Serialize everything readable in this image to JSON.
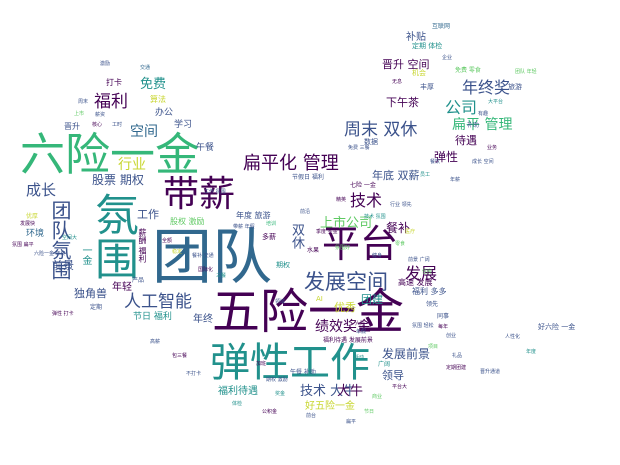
{
  "palette": {
    "dark_purple": "#440154",
    "indigo": "#3b528b",
    "teal": "#21918c",
    "green": "#5ec962",
    "yellow": "#c8d630",
    "navy": "#31688e",
    "sea": "#35b779"
  },
  "words": [
    {
      "t": "团队"
    },
    {
      "t": "五险一金"
    },
    {
      "t": "弹性工作"
    },
    {
      "t": "六险一金"
    },
    {
      "t": "氛围"
    },
    {
      "t": "带薪"
    },
    {
      "t": "平台"
    },
    {
      "t": "团队氛围"
    },
    {
      "t": "发展空间"
    },
    {
      "t": "扁平化 管理"
    },
    {
      "t": "人工智能"
    },
    {
      "t": "年终奖"
    },
    {
      "t": "技术"
    },
    {
      "t": "周末 双休"
    },
    {
      "t": "福利"
    },
    {
      "t": "空间"
    },
    {
      "t": "公司"
    },
    {
      "t": "扁平 管理"
    },
    {
      "t": "股票 期权"
    },
    {
      "t": "成长"
    },
    {
      "t": "上市公司"
    },
    {
      "t": "绩效奖金"
    },
    {
      "t": "技术 大牛"
    },
    {
      "t": "发展前景"
    },
    {
      "t": "发展"
    },
    {
      "t": "行业"
    },
    {
      "t": "免费"
    },
    {
      "t": "晋升 空间"
    },
    {
      "t": "下午茶"
    },
    {
      "t": "年底 双薪"
    },
    {
      "t": "弹性"
    },
    {
      "t": "待遇"
    },
    {
      "t": "双休"
    },
    {
      "t": "餐补"
    },
    {
      "t": "工作"
    },
    {
      "t": "大牛"
    },
    {
      "t": "前景"
    },
    {
      "t": "年轻"
    },
    {
      "t": "独角兽"
    },
    {
      "t": "环境"
    },
    {
      "t": "领导"
    },
    {
      "t": "团建"
    },
    {
      "t": "优秀"
    },
    {
      "t": "福利待遇"
    },
    {
      "t": "好五险一金"
    },
    {
      "t": "补贴"
    },
    {
      "t": "打卡"
    },
    {
      "t": "学习"
    },
    {
      "t": "一金"
    },
    {
      "t": "节日 福利"
    },
    {
      "t": "年终"
    },
    {
      "t": "晋升"
    },
    {
      "t": "办公"
    },
    {
      "t": "算法"
    },
    {
      "t": "午餐"
    },
    {
      "t": "高速 发展"
    },
    {
      "t": "福利 多多"
    },
    {
      "t": "定期 体检"
    },
    {
      "t": "互联网"
    },
    {
      "t": "机会"
    },
    {
      "t": "丰厚"
    },
    {
      "t": "旅游"
    },
    {
      "t": "免费 零食"
    },
    {
      "t": "股权 激励"
    },
    {
      "t": "年度 旅游"
    },
    {
      "t": "多薪"
    },
    {
      "t": "期权"
    },
    {
      "t": "水果"
    },
    {
      "t": "七险 一金"
    },
    {
      "t": "节假日 福利"
    },
    {
      "t": "数据"
    },
    {
      "t": "AI"
    },
    {
      "t": "薪酬 福利"
    },
    {
      "t": "产品"
    },
    {
      "t": "定期"
    },
    {
      "t": "午餐 补助"
    },
    {
      "t": "福利待遇 发展前景"
    },
    {
      "t": "广阔"
    },
    {
      "t": "领先"
    },
    {
      "t": "同事"
    },
    {
      "t": "补助"
    },
    {
      "t": "优厚"
    },
    {
      "t": "好六险 一金"
    },
    {
      "t": "交通"
    },
    {
      "t": "薪资"
    },
    {
      "t": "工作 氛围"
    },
    {
      "t": "核心"
    },
    {
      "t": "工时"
    },
    {
      "t": "前沿"
    },
    {
      "t": "氛围好"
    },
    {
      "t": "免费 三餐"
    },
    {
      "t": "精英"
    },
    {
      "t": "行业 领先"
    },
    {
      "t": "技术 氛围"
    },
    {
      "t": "季度 奖金"
    },
    {
      "t": "零食"
    },
    {
      "t": "医疗"
    },
    {
      "t": "健身"
    },
    {
      "t": "培训"
    },
    {
      "t": "带薪 年假"
    },
    {
      "t": "全额"
    },
    {
      "t": "稳定"
    },
    {
      "t": "前景 广阔"
    },
    {
      "t": "住房"
    },
    {
      "t": "六险"
    },
    {
      "t": "年假"
    },
    {
      "t": "活动"
    },
    {
      "t": "氛围 轻松"
    },
    {
      "t": "每年"
    },
    {
      "t": "创业"
    },
    {
      "t": "项目"
    },
    {
      "t": "领域"
    },
    {
      "t": "加班"
    },
    {
      "t": "期权 激励"
    },
    {
      "t": "奖金"
    },
    {
      "t": "前台"
    },
    {
      "t": "商业"
    },
    {
      "t": "平台大"
    },
    {
      "t": "有趣"
    },
    {
      "t": "大平台"
    },
    {
      "t": "成长 空间"
    },
    {
      "t": "业务"
    },
    {
      "t": "团队 年轻"
    },
    {
      "t": "企业"
    },
    {
      "t": "无息"
    },
    {
      "t": "餐饮"
    },
    {
      "t": "员工"
    },
    {
      "t": "年薪"
    },
    {
      "t": "氛围 扁平"
    },
    {
      "t": "六险一金 年终"
    },
    {
      "t": "空间大"
    },
    {
      "t": "弹性 打卡"
    },
    {
      "t": "周末"
    },
    {
      "t": "上市"
    },
    {
      "t": "餐补 交通"
    },
    {
      "t": "国际化"
    },
    {
      "t": "三餐"
    },
    {
      "t": "高薪"
    },
    {
      "t": "包三餐"
    },
    {
      "t": "不打卡"
    },
    {
      "t": "体检"
    },
    {
      "t": "公积金"
    },
    {
      "t": "扁平"
    },
    {
      "t": "节日"
    },
    {
      "t": "礼品"
    },
    {
      "t": "定期团建"
    },
    {
      "t": "人性化"
    },
    {
      "t": "年度"
    },
    {
      "t": "晋升通道"
    },
    {
      "t": "发展快"
    },
    {
      "t": "激励"
    }
  ]
}
